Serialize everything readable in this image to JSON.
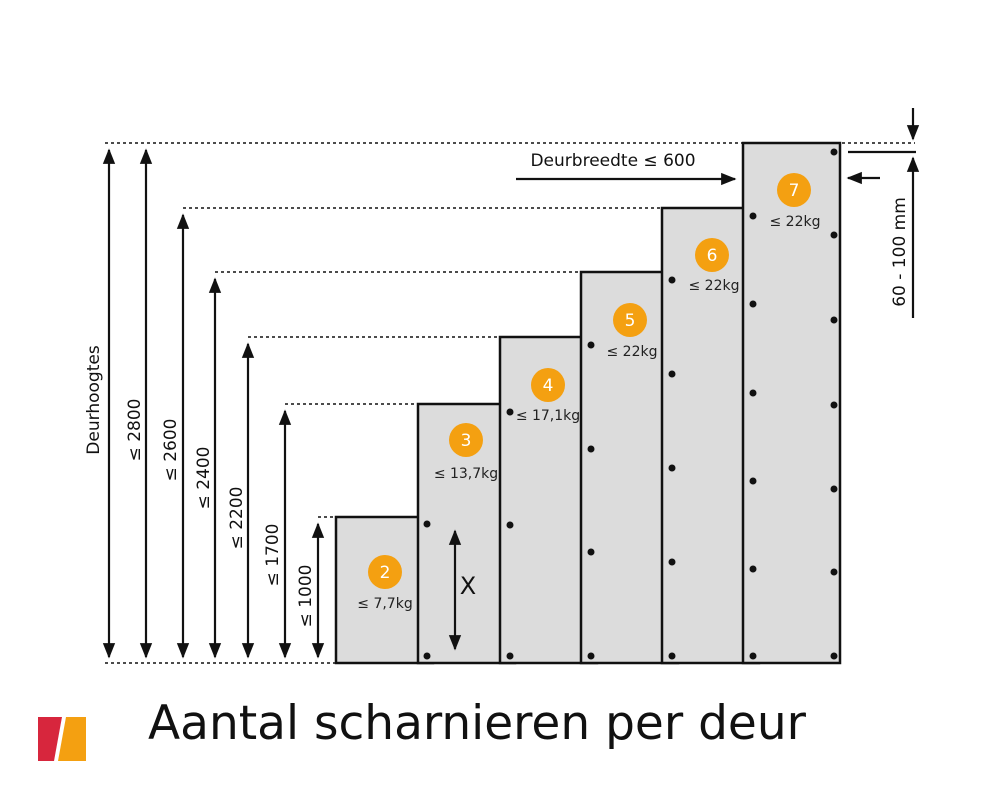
{
  "diagram": {
    "height_axis_label": "Deurhoogtes",
    "width_label": "Deurbreedte ≤ 600",
    "offset_label": "60 - 100 mm",
    "spacing_label": "X",
    "doors": [
      {
        "hinges": "2",
        "height_label": "≤ 1000",
        "weight": "≤ 7,7kg"
      },
      {
        "hinges": "3",
        "height_label": "≤ 1700",
        "weight": "≤ 13,7kg"
      },
      {
        "hinges": "4",
        "height_label": "≤ 2200",
        "weight": "≤ 17,1kg"
      },
      {
        "hinges": "5",
        "height_label": "≤ 2400",
        "weight": "≤ 22kg"
      },
      {
        "hinges": "6",
        "height_label": "≤ 2600",
        "weight": "≤ 22kg"
      },
      {
        "hinges": "7",
        "height_label": "≤ 2800",
        "weight": "≤ 22kg"
      }
    ],
    "colors": {
      "badge": "#f4a011",
      "door": "#dcdcdc",
      "logo_left": "#d7263d",
      "logo_right": "#f4a011"
    }
  },
  "footer": {
    "title": "Aantal scharnieren per deur",
    "logo_icon": "brand-logo-icon"
  }
}
